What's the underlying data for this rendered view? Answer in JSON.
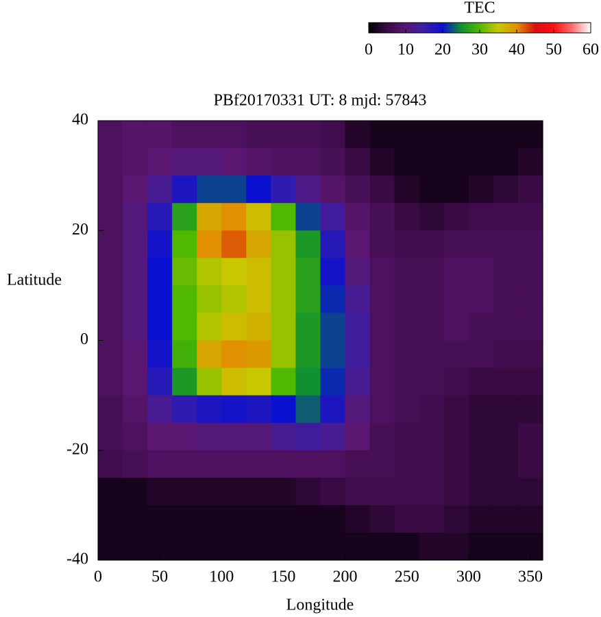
{
  "chart_data": {
    "type": "heatmap",
    "title": "PBf20170331  UT: 8  mjd: 57843",
    "xlabel": "Longitude",
    "ylabel": "Latitude",
    "colorbar_title": "TEC",
    "x": [
      10,
      30,
      50,
      70,
      90,
      110,
      130,
      150,
      170,
      190,
      210,
      230,
      250,
      270,
      290,
      310,
      330,
      350
    ],
    "y": [
      37.5,
      32.5,
      27.5,
      22.5,
      17.5,
      12.5,
      7.5,
      2.5,
      -2.5,
      -7.5,
      -12.5,
      -17.5,
      -22.5,
      -27.5,
      -32.5,
      -37.5
    ],
    "z": [
      [
        8,
        9,
        9,
        8,
        8,
        8,
        7,
        7,
        7,
        6,
        3,
        2,
        2,
        2,
        2,
        2,
        2,
        2
      ],
      [
        8,
        9,
        10,
        11,
        11,
        10,
        9,
        8,
        8,
        7,
        5,
        3,
        2,
        2,
        2,
        2,
        2,
        3
      ],
      [
        8,
        10,
        13,
        18,
        22,
        22,
        20,
        16,
        12,
        9,
        7,
        5,
        3,
        2,
        2,
        3,
        4,
        5
      ],
      [
        8,
        11,
        17,
        27,
        38,
        40,
        36,
        30,
        22,
        14,
        9,
        7,
        5,
        4,
        5,
        6,
        6,
        6
      ],
      [
        8,
        11,
        19,
        30,
        40,
        42,
        38,
        33,
        26,
        17,
        10,
        7,
        6,
        6,
        7,
        7,
        7,
        7
      ],
      [
        8,
        11,
        20,
        31,
        34,
        35,
        36,
        33,
        27,
        19,
        11,
        8,
        7,
        7,
        8,
        8,
        7,
        7
      ],
      [
        8,
        11,
        20,
        30,
        33,
        34,
        36,
        33,
        27,
        21,
        13,
        8,
        7,
        7,
        8,
        8,
        7,
        7
      ],
      [
        8,
        11,
        20,
        30,
        34,
        36,
        37,
        33,
        26,
        22,
        14,
        8,
        7,
        7,
        8,
        7,
        7,
        7
      ],
      [
        8,
        10,
        19,
        29,
        38,
        40,
        39,
        33,
        26,
        22,
        14,
        8,
        7,
        7,
        7,
        7,
        6,
        6
      ],
      [
        8,
        10,
        17,
        26,
        33,
        36,
        35,
        30,
        25,
        21,
        13,
        8,
        7,
        7,
        6,
        5,
        5,
        5
      ],
      [
        7,
        9,
        13,
        16,
        18,
        19,
        18,
        20,
        23,
        18,
        11,
        8,
        7,
        6,
        5,
        4,
        4,
        4
      ],
      [
        7,
        8,
        10,
        10,
        11,
        11,
        11,
        13,
        14,
        13,
        10,
        7,
        6,
        6,
        5,
        4,
        4,
        5
      ],
      [
        6,
        7,
        8,
        8,
        8,
        8,
        8,
        8,
        8,
        8,
        7,
        7,
        6,
        6,
        5,
        4,
        4,
        5
      ],
      [
        2,
        2,
        3,
        3,
        3,
        3,
        3,
        3,
        4,
        5,
        6,
        6,
        6,
        6,
        5,
        4,
        4,
        4
      ],
      [
        2,
        2,
        2,
        2,
        2,
        2,
        2,
        2,
        2,
        2,
        3,
        4,
        5,
        5,
        4,
        3,
        3,
        3
      ],
      [
        2,
        2,
        2,
        2,
        2,
        2,
        2,
        2,
        2,
        2,
        2,
        2,
        2,
        3,
        3,
        2,
        2,
        2
      ]
    ],
    "xlim": [
      0,
      360
    ],
    "xticks": [
      0,
      50,
      100,
      150,
      200,
      250,
      300,
      350
    ],
    "ylim": [
      -40,
      40
    ],
    "yticks": [
      -40,
      -20,
      0,
      20,
      40
    ],
    "zlim": [
      0,
      60
    ],
    "zticks": [
      0,
      10,
      20,
      30,
      40,
      50,
      60
    ],
    "colorscale": [
      "#000000",
      "#3a0a45",
      "#5a1670",
      "#3a1ea8",
      "#0a10d0",
      "#109030",
      "#50b800",
      "#c8c800",
      "#e09000",
      "#d81010",
      "#ff1010",
      "#ff7070",
      "#ffffff"
    ]
  }
}
